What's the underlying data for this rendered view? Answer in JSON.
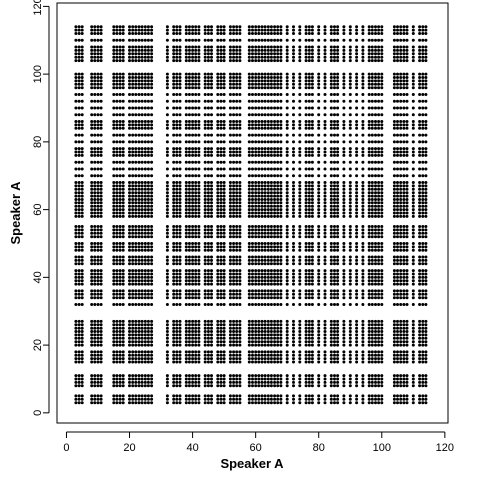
{
  "chart_data": {
    "type": "scatter",
    "title": "",
    "xlabel": "Speaker A",
    "ylabel": "Speaker A",
    "xlim": [
      -3,
      121
    ],
    "ylim": [
      -3,
      121
    ],
    "xticks": [
      0,
      20,
      40,
      60,
      80,
      100,
      120
    ],
    "yticks": [
      0,
      20,
      40,
      60,
      80,
      100,
      120
    ],
    "grid": false,
    "legend": "none",
    "point_color": "#000000",
    "description": "Recurrence plot: point (i, j) drawn when utterance i and utterance j share a token; displayed as a symmetric pattern of clustered rows and columns.",
    "recurrence_positions": [
      3,
      4,
      5,
      8,
      9,
      10,
      11,
      15,
      16,
      17,
      18,
      20,
      21,
      22,
      23,
      24,
      25,
      26,
      27,
      32,
      34,
      35,
      36,
      38,
      39,
      40,
      41,
      42,
      44,
      45,
      46,
      48,
      49,
      50,
      52,
      53,
      54,
      55,
      58,
      59,
      60,
      61,
      62,
      63,
      64,
      65,
      66,
      67,
      68,
      70,
      72,
      74,
      76,
      77,
      78,
      80,
      82,
      84,
      85,
      86,
      88,
      90,
      92,
      94,
      96,
      97,
      98,
      99,
      100,
      104,
      105,
      106,
      107,
      108,
      110,
      112,
      113,
      114
    ]
  }
}
